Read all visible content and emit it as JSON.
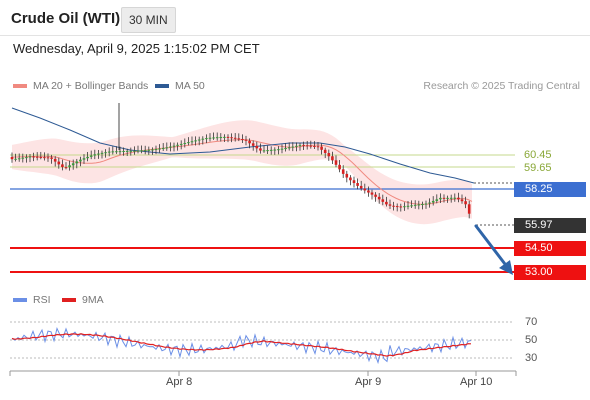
{
  "header": {
    "title": "Crude Oil (WTI)",
    "interval": "30 MIN"
  },
  "timestamp": "Wednesday, April 9, 2025 1:15:02 PM CET",
  "legend": {
    "bb": "MA 20 + Bollinger Bands",
    "ma50": "MA 50",
    "rsi": "RSI",
    "ma9": "9MA"
  },
  "credit": "Research © 2025 Trading Central",
  "colors": {
    "bb_fill": "#fde4e4",
    "ma20": "#f08a80",
    "ma50": "#2e5a94",
    "resistance": "#c6d98d",
    "pivot": "#3c6fd1",
    "support": "#ee1111",
    "current_badge": "#333333",
    "arrow": "#2f65a8",
    "rsi": "#6b8fe6",
    "rsi_ma": "#e02020"
  },
  "levels": {
    "r2": "60.45",
    "r1": "59.65",
    "pivot": "58.25",
    "current": "55.97",
    "s1": "54.50",
    "s2": "53.00"
  },
  "rsi_levels": [
    "70",
    "50",
    "30"
  ],
  "x_labels": [
    "Apr 8",
    "Apr 9",
    "Apr 10"
  ],
  "chart_data": {
    "type": "candlestick",
    "price_range_visible": [
      52.6,
      62.6
    ],
    "series_summary": [
      {
        "name": "Price",
        "start": 60.1,
        "high": 62.3,
        "end": 55.97
      }
    ],
    "levels": [
      60.45,
      59.65,
      58.25,
      55.97,
      54.5,
      53.0
    ],
    "rsi_levels": [
      70,
      50,
      30
    ]
  }
}
